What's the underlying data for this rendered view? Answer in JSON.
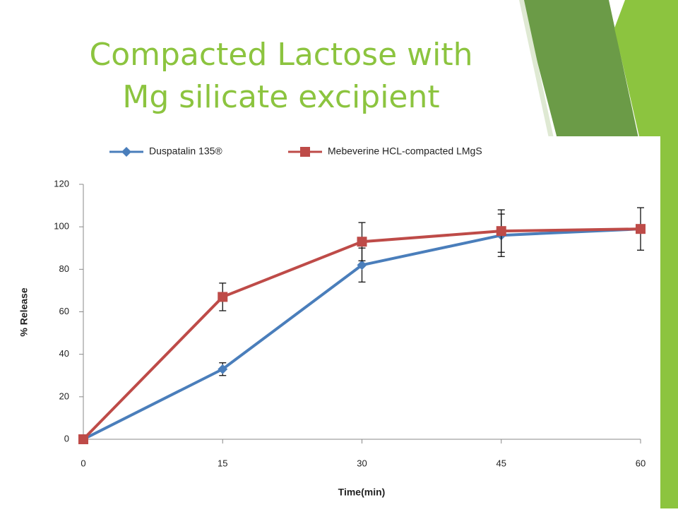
{
  "chart_data": {
    "type": "line",
    "title": [
      "Compacted Lactose with",
      "Mg silicate excipient"
    ],
    "x_label": "Time(min)",
    "y_label": "% Release",
    "x": [
      0,
      15,
      30,
      45,
      60
    ],
    "xlim": [
      0,
      60
    ],
    "xticks": [
      0,
      15,
      30,
      45,
      60
    ],
    "ylim": [
      0,
      120
    ],
    "yticks": [
      0,
      20,
      40,
      60,
      80,
      100,
      120
    ],
    "grid": false,
    "series": [
      {
        "name": "Duspatalin 135®",
        "color": "#4a7ebb",
        "marker": "diamond",
        "values": [
          0,
          33,
          82,
          96,
          99
        ],
        "errors": [
          null,
          3,
          8,
          10,
          null
        ]
      },
      {
        "name": "Mebeverine HCL-compacted LMgS",
        "color": "#be4b48",
        "marker": "square",
        "values": [
          0,
          67,
          93,
          98,
          99
        ],
        "errors": [
          null,
          6.5,
          9,
          10,
          10
        ]
      }
    ]
  }
}
